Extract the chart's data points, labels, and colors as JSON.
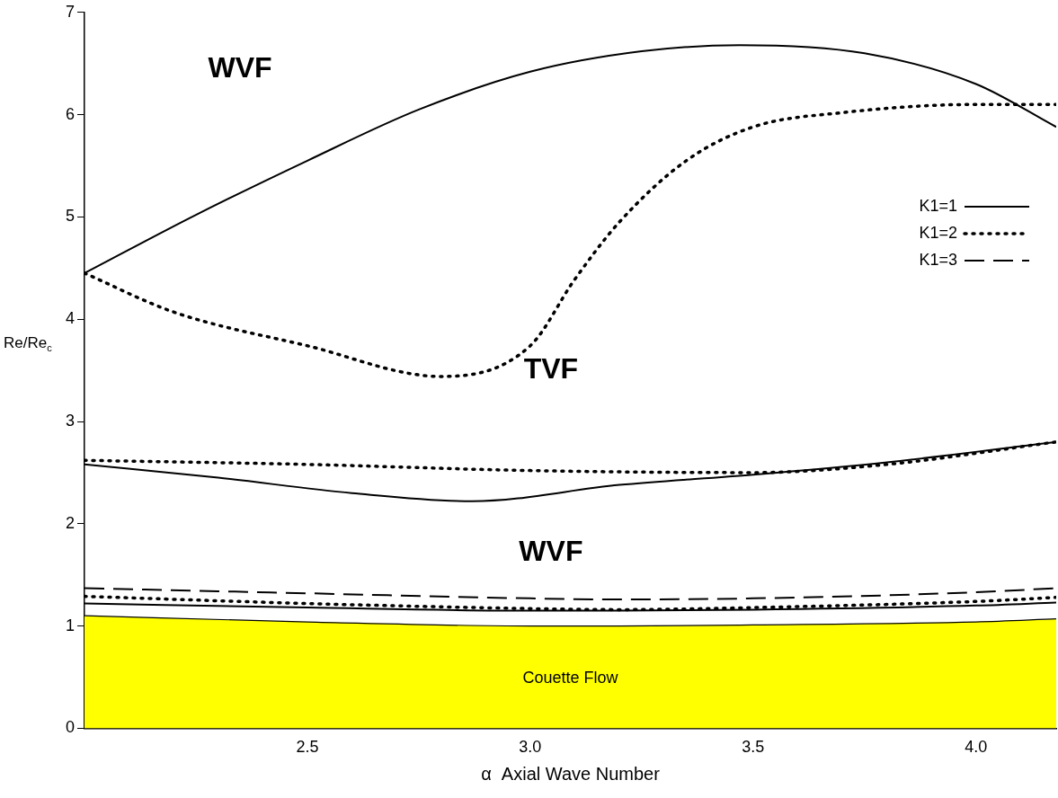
{
  "chart_data": {
    "type": "line",
    "xlabel": "α  Axial Wave Number",
    "ylabel": "Re/Re$_{c}$",
    "xlim": [
      2.0,
      4.18
    ],
    "xticks": [
      {
        "value": 2.5,
        "label": "2.5"
      },
      {
        "value": 3.0,
        "label": "3.0"
      },
      {
        "value": 3.5,
        "label": "3.5"
      },
      {
        "value": 4.0,
        "label": "4.0"
      }
    ],
    "ylim": [
      0,
      7
    ],
    "yticks": [
      0,
      1,
      2,
      3,
      4,
      5,
      6,
      7
    ],
    "grid": false,
    "legend": "right",
    "marker": "none",
    "series": [
      {
        "name": "K1=1",
        "color": "#000000",
        "line_style": "solid",
        "x": [
          2.0,
          2.25,
          2.5,
          2.75,
          3.0,
          3.25,
          3.47,
          3.75,
          4.0,
          4.18
        ],
        "values": [
          4.45,
          5.02,
          5.55,
          6.05,
          6.42,
          6.62,
          6.68,
          6.6,
          6.3,
          5.88
        ]
      },
      {
        "name": "K1=2",
        "color": "#000000",
        "line_style": "dotted",
        "x": [
          2.0,
          2.2,
          2.5,
          2.8,
          3.0,
          3.1,
          3.2,
          3.35,
          3.5,
          3.7,
          4.0,
          4.18
        ],
        "values": [
          4.45,
          4.07,
          3.74,
          3.44,
          3.74,
          4.39,
          4.95,
          5.55,
          5.88,
          6.02,
          6.1,
          6.1
        ]
      },
      {
        "color": "#000000",
        "line_style": "solid",
        "x": [
          2.0,
          2.3,
          2.6,
          2.87,
          3.2,
          3.5,
          3.8,
          4.18
        ],
        "values": [
          2.58,
          2.45,
          2.3,
          2.22,
          2.38,
          2.48,
          2.6,
          2.8
        ]
      },
      {
        "color": "#000000",
        "line_style": "dotted",
        "x": [
          2.0,
          2.5,
          3.0,
          3.5,
          3.8,
          4.18
        ],
        "values": [
          2.62,
          2.58,
          2.52,
          2.5,
          2.58,
          2.8
        ]
      },
      {
        "name": "K1=3",
        "color": "#000000",
        "line_style": "dashed",
        "x": [
          2.0,
          2.5,
          3.0,
          3.2,
          3.5,
          4.0,
          4.18
        ],
        "values": [
          1.37,
          1.32,
          1.27,
          1.26,
          1.27,
          1.33,
          1.37
        ]
      },
      {
        "color": "#000000",
        "line_style": "dotted",
        "x": [
          2.0,
          2.5,
          3.0,
          3.2,
          3.5,
          4.0,
          4.18
        ],
        "values": [
          1.29,
          1.22,
          1.17,
          1.16,
          1.18,
          1.24,
          1.28
        ]
      },
      {
        "color": "#000000",
        "line_style": "solid",
        "x": [
          2.0,
          2.5,
          3.0,
          3.2,
          3.5,
          4.0,
          4.18
        ],
        "values": [
          1.22,
          1.18,
          1.15,
          1.15,
          1.16,
          1.2,
          1.23
        ]
      },
      {
        "type": "area",
        "color": "#ffff00",
        "line_style": "solid",
        "x": [
          2.0,
          2.5,
          3.0,
          3.2,
          3.5,
          4.0,
          4.18
        ],
        "values": [
          1.1,
          1.04,
          1.0,
          1.0,
          1.01,
          1.04,
          1.07
        ]
      }
    ],
    "annotations": [
      "WVF",
      "TVF",
      "WVF",
      "Couette Flow"
    ]
  }
}
